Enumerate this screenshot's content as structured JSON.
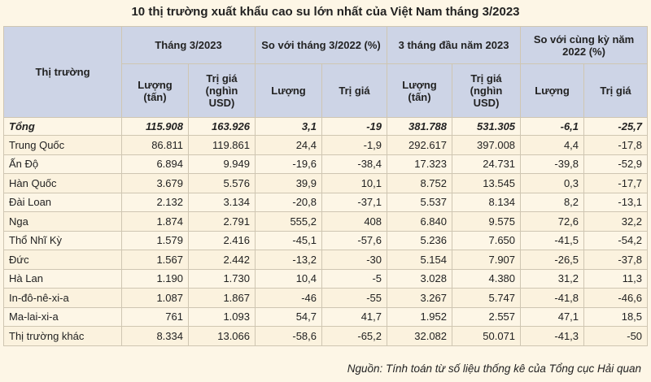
{
  "title": "10 thị trường xuất khẩu cao su lớn nhất của Việt Nam tháng 3/2023",
  "headers": {
    "market": "Thị trường",
    "groups": [
      "Tháng 3/2023",
      "So với tháng 3/2022 (%)",
      "3 tháng đầu năm 2023",
      "So với cùng kỳ năm 2022 (%)"
    ],
    "sub": [
      "Lượng (tấn)",
      "Trị giá (nghìn USD)",
      "Lượng",
      "Trị giá",
      "Lượng (tấn)",
      "Trị giá (nghìn USD)",
      "Lượng",
      "Trị giá"
    ]
  },
  "total": {
    "name": "Tổng",
    "values": [
      "115.908",
      "163.926",
      "3,1",
      "-19",
      "381.788",
      "531.305",
      "-6,1",
      "-25,7"
    ]
  },
  "rows": [
    {
      "name": "Trung Quốc",
      "values": [
        "86.811",
        "119.861",
        "24,4",
        "-1,9",
        "292.617",
        "397.008",
        "4,4",
        "-17,8"
      ]
    },
    {
      "name": "Ấn Độ",
      "values": [
        "6.894",
        "9.949",
        "-19,6",
        "-38,4",
        "17.323",
        "24.731",
        "-39,8",
        "-52,9"
      ]
    },
    {
      "name": "Hàn Quốc",
      "values": [
        "3.679",
        "5.576",
        "39,9",
        "10,1",
        "8.752",
        "13.545",
        "0,3",
        "-17,7"
      ]
    },
    {
      "name": "Đài Loan",
      "values": [
        "2.132",
        "3.134",
        "-20,8",
        "-37,1",
        "5.537",
        "8.134",
        "8,2",
        "-13,1"
      ]
    },
    {
      "name": "Nga",
      "values": [
        "1.874",
        "2.791",
        "555,2",
        "408",
        "6.840",
        "9.575",
        "72,6",
        "32,2"
      ]
    },
    {
      "name": "Thổ Nhĩ Kỳ",
      "values": [
        "1.579",
        "2.416",
        "-45,1",
        "-57,6",
        "5.236",
        "7.650",
        "-41,5",
        "-54,2"
      ]
    },
    {
      "name": "Đức",
      "values": [
        "1.567",
        "2.442",
        "-13,2",
        "-30",
        "5.154",
        "7.907",
        "-26,5",
        "-37,8"
      ]
    },
    {
      "name": "Hà Lan",
      "values": [
        "1.190",
        "1.730",
        "10,4",
        "-5",
        "3.028",
        "4.380",
        "31,2",
        "11,3"
      ]
    },
    {
      "name": "In-đô-nê-xi-a",
      "values": [
        "1.087",
        "1.867",
        "-46",
        "-55",
        "3.267",
        "5.747",
        "-41,8",
        "-46,6"
      ]
    },
    {
      "name": "Ma-lai-xi-a",
      "values": [
        "761",
        "1.093",
        "54,7",
        "41,7",
        "1.952",
        "2.557",
        "47,1",
        "18,5"
      ]
    },
    {
      "name": "Thị trường khác",
      "values": [
        "8.334",
        "13.066",
        "-58,6",
        "-65,2",
        "32.082",
        "50.071",
        "-41,3",
        "-50"
      ]
    }
  ],
  "source": "Nguồn: Tính toán từ số liệu thống kê của Tổng cục Hải quan"
}
